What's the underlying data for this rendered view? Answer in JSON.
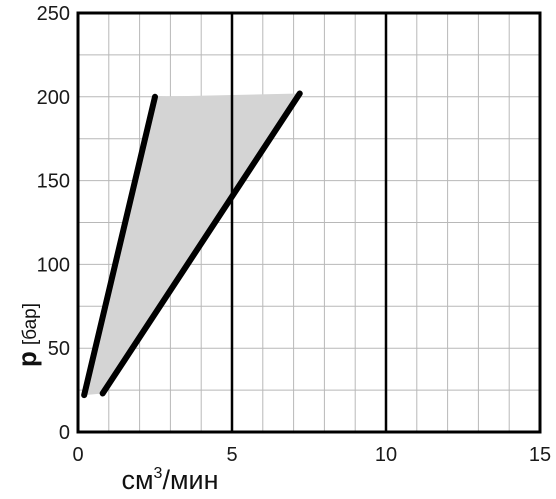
{
  "chart_data": {
    "type": "line",
    "title": "",
    "xlabel": "см³/мин",
    "xlabel_parts": {
      "base": "см",
      "sup": "3",
      "rest": "/мин"
    },
    "ylabel": "p [бар]",
    "ylabel_parts": {
      "symbol": "p",
      "unit": "[бар]"
    },
    "xlim": [
      0,
      15
    ],
    "ylim": [
      0,
      250
    ],
    "x_ticks": [
      0,
      5,
      10,
      15
    ],
    "y_ticks": [
      0,
      50,
      100,
      150,
      200,
      250
    ],
    "x_minor_step": 1,
    "y_minor_step": 25,
    "x_major_gridlines": [
      5,
      10
    ],
    "grid": true,
    "series": [
      {
        "points": [
          [
            0.2,
            22
          ],
          [
            2.5,
            200
          ]
        ]
      },
      {
        "points": [
          [
            0.8,
            23
          ],
          [
            7.2,
            202
          ]
        ]
      }
    ],
    "shaded_region": [
      [
        2.5,
        200
      ],
      [
        0.2,
        22
      ],
      [
        0.8,
        23
      ],
      [
        7.2,
        202
      ]
    ],
    "colors": {
      "line": "#000000",
      "fill": "#d4d4d4",
      "grid": "#b8b8b8",
      "major_grid": "#000000",
      "tick_text": "#1a1a1a"
    }
  }
}
